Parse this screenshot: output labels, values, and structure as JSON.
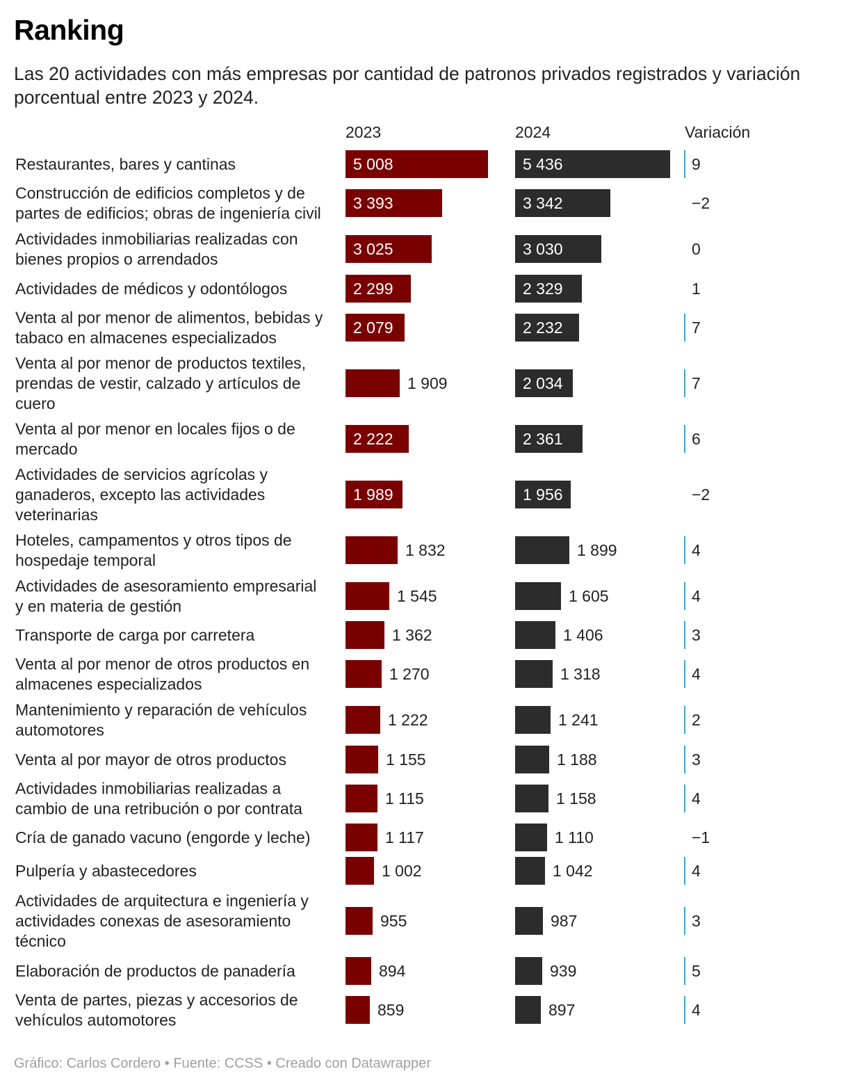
{
  "header": {
    "title": "Ranking",
    "subtitle": "Las 20 actividades con más empresas por cantidad de patronos privados registrados y variación porcentual entre 2023 y 2024."
  },
  "columns": {
    "y2023": "2023",
    "y2024": "2024",
    "variation": "Variación"
  },
  "colors": {
    "bar2023": "#7a0000",
    "bar2024": "#2c2c2c",
    "variationLine": "#3fa3d4",
    "text": "#222222",
    "footer": "#a0a0a0"
  },
  "chart_data": {
    "type": "bar",
    "title": "Ranking",
    "series": [
      {
        "name": "2023",
        "values": [
          5008,
          3393,
          3025,
          2299,
          2079,
          1909,
          2222,
          1989,
          1832,
          1545,
          1362,
          1270,
          1222,
          1155,
          1115,
          1117,
          1002,
          955,
          894,
          859
        ]
      },
      {
        "name": "2024",
        "values": [
          5436,
          3342,
          3030,
          2329,
          2232,
          2034,
          2361,
          1956,
          1899,
          1605,
          1406,
          1318,
          1241,
          1188,
          1158,
          1110,
          1042,
          987,
          939,
          897
        ]
      },
      {
        "name": "Variación",
        "values": [
          9,
          -2,
          0,
          1,
          7,
          7,
          6,
          -2,
          4,
          4,
          3,
          4,
          2,
          3,
          4,
          -1,
          4,
          3,
          5,
          4
        ]
      }
    ],
    "rows": [
      {
        "label": [
          "Restaurantes, bares y cantinas"
        ],
        "v2023": "5 008",
        "v2024": "5 436",
        "variation": "9"
      },
      {
        "label": [
          "Construcción de edificios completos y de",
          "partes de edificios; obras de ingeniería civil"
        ],
        "v2023": "3 393",
        "v2024": "3 342",
        "variation": "−2"
      },
      {
        "label": [
          "Actividades inmobiliarias realizadas con",
          "bienes propios o arrendados"
        ],
        "v2023": "3 025",
        "v2024": "3 030",
        "variation": "0"
      },
      {
        "label": [
          "Actividades de médicos y odontólogos"
        ],
        "v2023": "2 299",
        "v2024": "2 329",
        "variation": "1"
      },
      {
        "label": [
          "Venta al por menor de alimentos, bebidas y",
          "tabaco en almacenes especializados"
        ],
        "v2023": "2 079",
        "v2024": "2 232",
        "variation": "7"
      },
      {
        "label": [
          "Venta al por menor de productos textiles,",
          "prendas de vestir, calzado y artículos de",
          "cuero"
        ],
        "v2023": "1 909",
        "v2024": "2 034",
        "variation": "7"
      },
      {
        "label": [
          "Venta al por menor en locales fijos o de",
          "mercado"
        ],
        "v2023": "2 222",
        "v2024": "2 361",
        "variation": "6"
      },
      {
        "label": [
          "Actividades de servicios agrícolas y",
          "ganaderos, excepto las actividades",
          "veterinarias"
        ],
        "v2023": "1 989",
        "v2024": "1 956",
        "variation": "−2"
      },
      {
        "label": [
          "Hoteles, campamentos y otros tipos de",
          "hospedaje temporal"
        ],
        "v2023": "1 832",
        "v2024": "1 899",
        "variation": "4"
      },
      {
        "label": [
          "Actividades de asesoramiento empresarial",
          "y en materia de gestión"
        ],
        "v2023": "1 545",
        "v2024": "1 605",
        "variation": "4"
      },
      {
        "label": [
          "Transporte de carga por carretera"
        ],
        "v2023": "1 362",
        "v2024": "1 406",
        "variation": "3"
      },
      {
        "label": [
          "Venta al por menor de otros productos en",
          "almacenes especializados"
        ],
        "v2023": "1 270",
        "v2024": "1 318",
        "variation": "4"
      },
      {
        "label": [
          "Mantenimiento y reparación de vehículos",
          "automotores"
        ],
        "v2023": "1 222",
        "v2024": "1 241",
        "variation": "2"
      },
      {
        "label": [
          "Venta al por mayor de otros productos"
        ],
        "v2023": "1 155",
        "v2024": "1 188",
        "variation": "3"
      },
      {
        "label": [
          "Actividades inmobiliarias realizadas a",
          "cambio de una retribución o por contrata"
        ],
        "v2023": "1 115",
        "v2024": "1 158",
        "variation": "4"
      },
      {
        "label": [
          "Cría de ganado vacuno (engorde y leche)"
        ],
        "v2023": "1 117",
        "v2024": "1 110",
        "variation": "−1"
      },
      {
        "label": [
          "Pulpería y abastecedores"
        ],
        "v2023": "1 002",
        "v2024": "1 042",
        "variation": "4"
      },
      {
        "label": [
          "Actividades de arquitectura e ingeniería y",
          "actividades conexas de asesoramiento",
          "técnico"
        ],
        "v2023": "955",
        "v2024": "987",
        "variation": "3"
      },
      {
        "label": [
          "Elaboración de productos de panadería"
        ],
        "v2023": "894",
        "v2024": "939",
        "variation": "5"
      },
      {
        "label": [
          "Venta de partes, piezas y accesorios de",
          "vehículos automotores"
        ],
        "v2023": "859",
        "v2024": "897",
        "variation": "4"
      }
    ],
    "xlim": [
      0,
      5436
    ],
    "xlabel": "",
    "ylabel": ""
  },
  "footer": {
    "credit": "Gráfico: Carlos Cordero",
    "sep1": " • ",
    "source": "Fuente: CCSS",
    "sep2": " • ",
    "tool": "Creado con Datawrapper"
  }
}
